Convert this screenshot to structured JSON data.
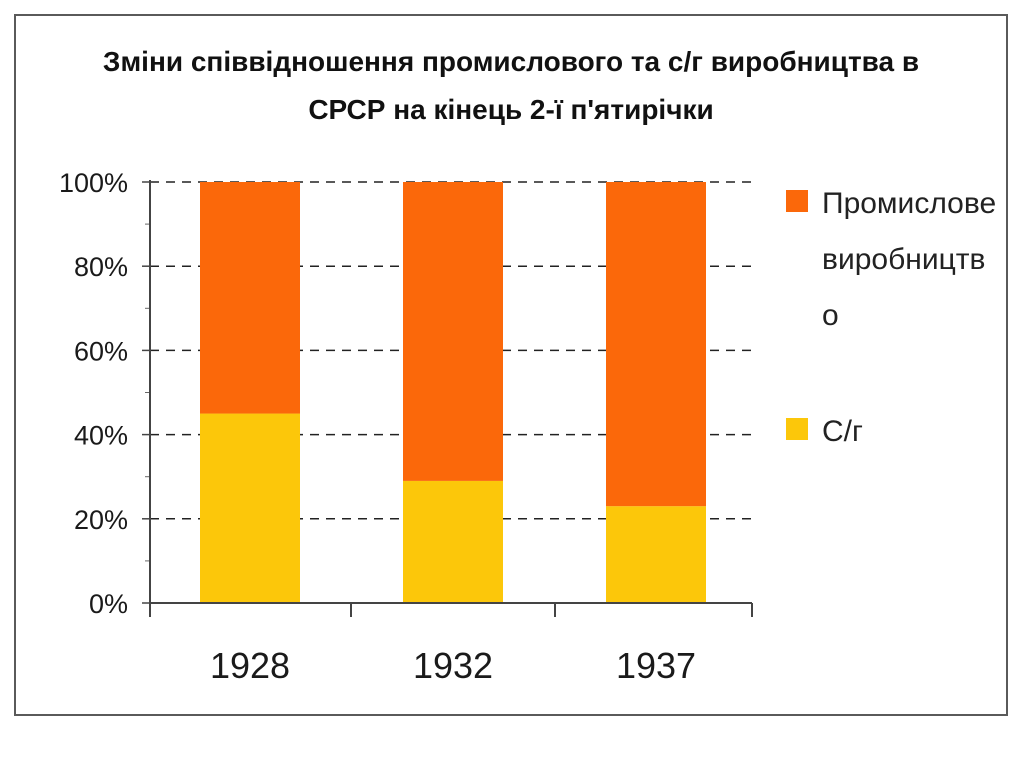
{
  "chart_data": {
    "type": "bar",
    "stacked": true,
    "percent": true,
    "title": "Зміни співвідношення промислового та с/г виробництва в СРСР на кінець 2-ї п'ятирічки",
    "title_lines": [
      "Зміни співвідношення промислового та с/г виробництва в",
      "СРСР на кінець 2-ї п'ятирічки"
    ],
    "categories": [
      "1928",
      "1932",
      "1937"
    ],
    "series": [
      {
        "name": "С/г",
        "values": [
          45,
          29,
          23
        ],
        "color": "#fcc70a"
      },
      {
        "name": "Промислове виробництво",
        "values": [
          55,
          71,
          77
        ],
        "color": "#fb680a"
      }
    ],
    "ylim": [
      0,
      100
    ],
    "yticks": [
      "0%",
      "20%",
      "40%",
      "60%",
      "80%",
      "100%"
    ],
    "grid": "dashed-horizontal",
    "legend_position": "right",
    "legend": [
      {
        "label": "Промислове виробництво",
        "color": "#fb680a"
      },
      {
        "label": "С/г",
        "color": "#fcc70a"
      }
    ]
  }
}
